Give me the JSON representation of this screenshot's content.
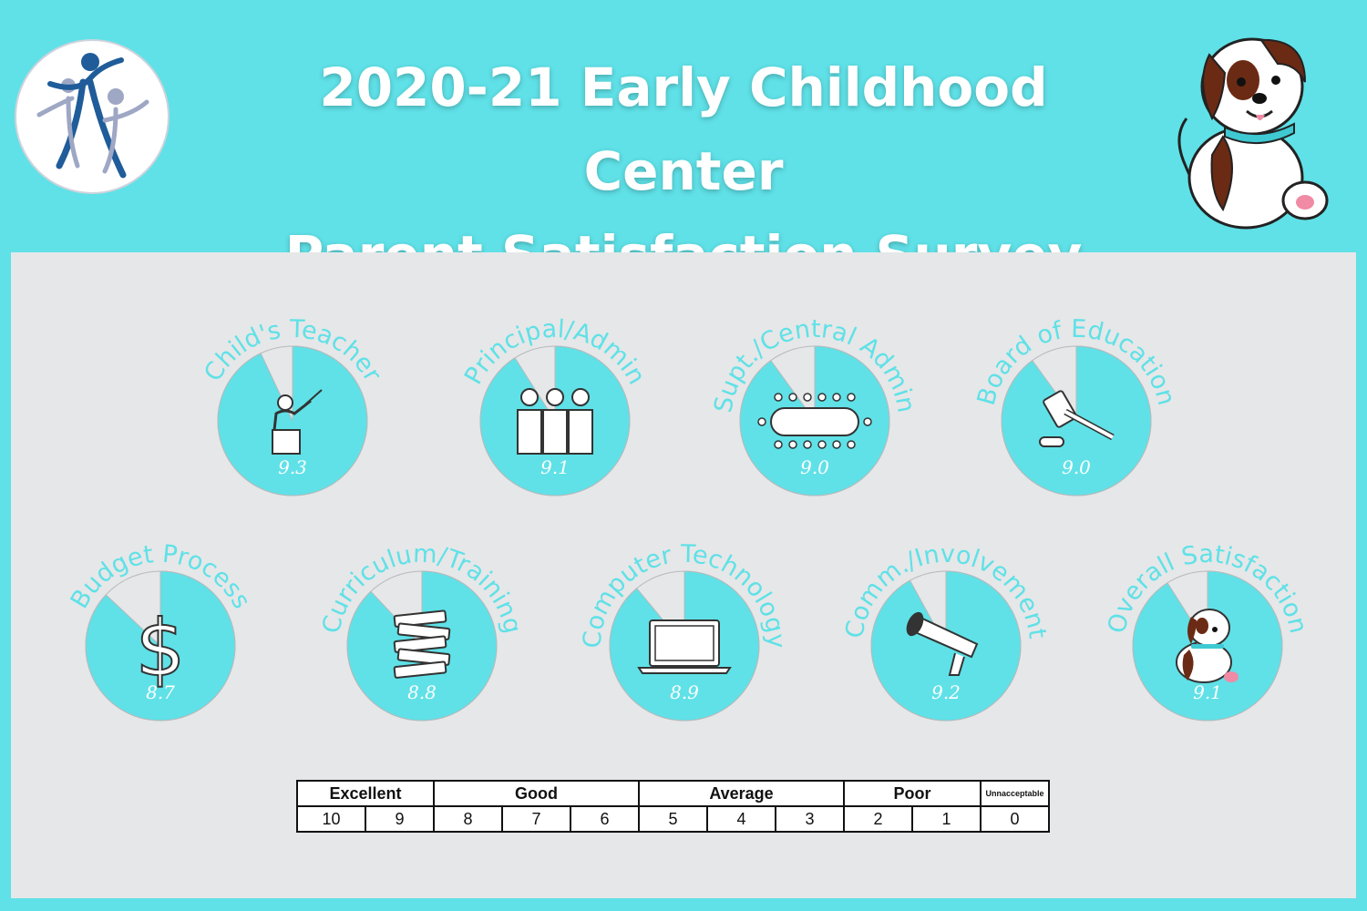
{
  "header": {
    "title_line1": "2020-21 Early Childhood Center",
    "title_line2": "Parent Satisfaction Survey Results"
  },
  "colors": {
    "background": "#5fe1e7",
    "panel": "#e6e7e8",
    "slice_fill": "#5fe1e7",
    "slice_remainder": "#e6e7e8",
    "outline": "#b8b9bb"
  },
  "icons": [
    "logo-icon",
    "dog-mascot-icon",
    "teacher-icon",
    "people-icon",
    "meeting-table-icon",
    "gavel-icon",
    "dollar-icon",
    "books-icon",
    "laptop-icon",
    "megaphone-icon",
    "dog-icon"
  ],
  "chart_data": {
    "type": "pie",
    "scale_max": 10,
    "items": [
      {
        "label": "Child's Teacher",
        "value": 9.3,
        "display": "9.3",
        "icon": "teacher-icon"
      },
      {
        "label": "Principal/Admin",
        "value": 9.1,
        "display": "9.1",
        "icon": "people-icon"
      },
      {
        "label": "Supt./Central Admin",
        "value": 9.0,
        "display": "9.0",
        "icon": "meeting-table-icon"
      },
      {
        "label": "Board of Education",
        "value": 9.0,
        "display": "9.0",
        "icon": "gavel-icon"
      },
      {
        "label": "Budget Process",
        "value": 8.7,
        "display": "8.7",
        "icon": "dollar-icon"
      },
      {
        "label": "Curriculum/Training",
        "value": 8.8,
        "display": "8.8",
        "icon": "books-icon"
      },
      {
        "label": "Computer Technology",
        "value": 8.9,
        "display": "8.9",
        "icon": "laptop-icon"
      },
      {
        "label": "Comm./Involvement",
        "value": 9.2,
        "display": "9.2",
        "icon": "megaphone-icon"
      },
      {
        "label": "Overall Satisfaction",
        "value": 9.1,
        "display": "9.1",
        "icon": "dog-icon"
      }
    ]
  },
  "scale": {
    "groups": [
      "Excellent",
      "Good",
      "Average",
      "Poor",
      "Unnacceptable"
    ],
    "numbers": [
      "10",
      "9",
      "8",
      "7",
      "6",
      "5",
      "4",
      "3",
      "2",
      "1",
      "0"
    ]
  }
}
